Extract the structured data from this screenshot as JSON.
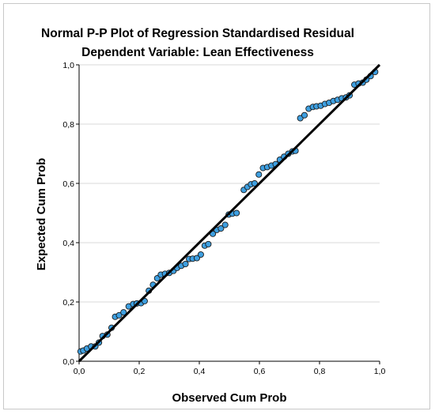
{
  "chart_data": {
    "type": "scatter",
    "title": "Normal P-P Plot of Regression Standardised Residual",
    "subtitle": "Dependent Variable: Lean Effectiveness",
    "xlabel": "Observed Cum Prob",
    "ylabel": "Expected Cum Prob",
    "xlim": [
      0,
      1
    ],
    "ylim": [
      0,
      1
    ],
    "x_ticks": [
      "0,0",
      "0,2",
      "0,4",
      "0,6",
      "0,8",
      "1,0"
    ],
    "y_ticks": [
      "0,0",
      "0,2",
      "0,4",
      "0,6",
      "0,8",
      "1,0"
    ],
    "grid": "horizontal",
    "marker_color": "#3e9fe0",
    "marker_edge_color": "#1a1a1a",
    "reference_line": {
      "from": [
        0,
        0
      ],
      "to": [
        1,
        1
      ],
      "color": "#000000"
    },
    "points": [
      [
        0.005,
        0.033
      ],
      [
        0.014,
        0.036
      ],
      [
        0.026,
        0.043
      ],
      [
        0.04,
        0.05
      ],
      [
        0.054,
        0.05
      ],
      [
        0.066,
        0.063
      ],
      [
        0.078,
        0.085
      ],
      [
        0.094,
        0.09
      ],
      [
        0.108,
        0.113
      ],
      [
        0.12,
        0.15
      ],
      [
        0.133,
        0.155
      ],
      [
        0.148,
        0.165
      ],
      [
        0.165,
        0.185
      ],
      [
        0.18,
        0.193
      ],
      [
        0.192,
        0.195
      ],
      [
        0.206,
        0.196
      ],
      [
        0.218,
        0.203
      ],
      [
        0.232,
        0.238
      ],
      [
        0.246,
        0.258
      ],
      [
        0.26,
        0.28
      ],
      [
        0.272,
        0.292
      ],
      [
        0.286,
        0.295
      ],
      [
        0.3,
        0.298
      ],
      [
        0.314,
        0.305
      ],
      [
        0.326,
        0.315
      ],
      [
        0.34,
        0.322
      ],
      [
        0.354,
        0.328
      ],
      [
        0.366,
        0.345
      ],
      [
        0.378,
        0.346
      ],
      [
        0.392,
        0.348
      ],
      [
        0.405,
        0.36
      ],
      [
        0.418,
        0.39
      ],
      [
        0.43,
        0.395
      ],
      [
        0.445,
        0.43
      ],
      [
        0.458,
        0.443
      ],
      [
        0.472,
        0.448
      ],
      [
        0.486,
        0.46
      ],
      [
        0.498,
        0.495
      ],
      [
        0.51,
        0.498
      ],
      [
        0.524,
        0.5
      ],
      [
        0.548,
        0.578
      ],
      [
        0.56,
        0.588
      ],
      [
        0.572,
        0.597
      ],
      [
        0.584,
        0.6
      ],
      [
        0.598,
        0.63
      ],
      [
        0.612,
        0.652
      ],
      [
        0.626,
        0.655
      ],
      [
        0.64,
        0.66
      ],
      [
        0.654,
        0.665
      ],
      [
        0.668,
        0.68
      ],
      [
        0.682,
        0.69
      ],
      [
        0.696,
        0.7
      ],
      [
        0.71,
        0.708
      ],
      [
        0.72,
        0.71
      ],
      [
        0.736,
        0.82
      ],
      [
        0.75,
        0.83
      ],
      [
        0.764,
        0.852
      ],
      [
        0.778,
        0.858
      ],
      [
        0.79,
        0.86
      ],
      [
        0.804,
        0.862
      ],
      [
        0.818,
        0.868
      ],
      [
        0.832,
        0.872
      ],
      [
        0.846,
        0.878
      ],
      [
        0.86,
        0.882
      ],
      [
        0.874,
        0.887
      ],
      [
        0.888,
        0.89
      ],
      [
        0.9,
        0.897
      ],
      [
        0.916,
        0.933
      ],
      [
        0.93,
        0.937
      ],
      [
        0.944,
        0.94
      ],
      [
        0.956,
        0.95
      ],
      [
        0.97,
        0.962
      ],
      [
        0.985,
        0.976
      ]
    ]
  }
}
